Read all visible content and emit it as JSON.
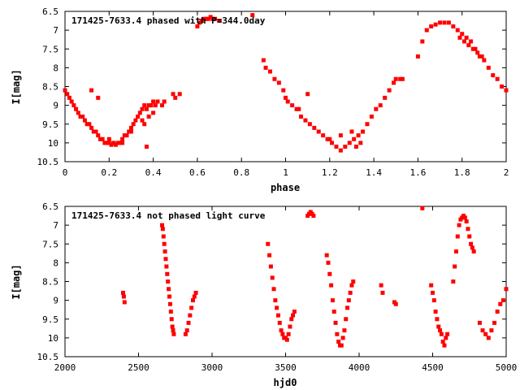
{
  "chart_data": [
    {
      "type": "scatter",
      "title": "171425-7633.4 phased with P=344.0day",
      "xlabel": "phase",
      "ylabel": "I[mag]",
      "xlim": [
        0,
        2
      ],
      "ylim": [
        10.5,
        6.5
      ],
      "y_inverted": true,
      "xticks": [
        0,
        0.2,
        0.4,
        0.6,
        0.8,
        1,
        1.2,
        1.4,
        1.6,
        1.8,
        2
      ],
      "yticks": [
        6.5,
        7,
        7.5,
        8,
        8.5,
        9,
        9.5,
        10,
        10.5
      ],
      "grid": false,
      "color": "#ff0000",
      "series": [
        {
          "x": [
            0.0,
            0.01,
            0.02,
            0.03,
            0.04,
            0.05,
            0.06,
            0.07,
            0.08,
            0.09,
            0.1,
            0.11,
            0.12,
            0.13,
            0.14,
            0.15,
            0.16,
            0.17,
            0.18,
            0.19,
            0.2,
            0.21,
            0.22,
            0.23,
            0.24,
            0.25,
            0.26,
            0.27,
            0.28,
            0.29,
            0.3,
            0.31,
            0.32,
            0.33,
            0.34,
            0.35,
            0.36,
            0.37,
            0.38,
            0.39,
            0.4,
            0.41,
            0.42,
            0.44,
            0.49,
            0.5,
            0.12,
            0.15,
            0.2,
            0.26,
            0.3,
            0.35,
            0.36,
            0.38,
            0.4,
            0.45,
            0.37,
            0.52,
            0.6,
            0.61,
            0.62,
            0.63,
            0.64,
            0.65,
            0.66,
            0.67,
            0.68,
            0.7,
            0.85,
            0.9,
            0.91,
            0.93,
            0.95,
            0.97,
            0.99,
            1.0,
            1.01,
            1.03,
            1.05,
            1.07,
            1.09,
            1.11,
            1.13,
            1.15,
            1.17,
            1.19,
            1.21,
            1.23,
            1.25,
            1.27,
            1.29,
            1.31,
            1.33,
            1.35,
            1.37,
            1.39,
            1.41,
            1.43,
            1.45,
            1.47,
            1.49,
            1.5,
            1.06,
            1.1,
            1.2,
            1.25,
            1.3,
            1.32,
            1.34,
            1.52,
            1.53,
            1.6,
            1.62,
            1.64,
            1.66,
            1.68,
            1.7,
            1.72,
            1.74,
            1.76,
            1.78,
            1.8,
            1.82,
            1.84,
            1.86,
            1.88,
            1.9,
            1.92,
            1.94,
            1.96,
            1.98,
            2.0,
            1.79,
            1.81,
            1.83,
            1.85,
            1.87,
            1.89
          ],
          "y": [
            8.6,
            8.7,
            8.8,
            8.9,
            9.0,
            9.1,
            9.2,
            9.3,
            9.3,
            9.4,
            9.5,
            9.5,
            9.6,
            9.7,
            9.7,
            9.8,
            9.9,
            9.9,
            10.0,
            10.0,
            10.0,
            10.05,
            10.0,
            10.05,
            10.0,
            10.0,
            9.9,
            9.8,
            9.8,
            9.7,
            9.6,
            9.5,
            9.4,
            9.3,
            9.2,
            9.1,
            9.0,
            9.1,
            9.0,
            9.0,
            8.9,
            9.0,
            8.9,
            9.0,
            8.7,
            8.8,
            8.6,
            8.8,
            9.9,
            10.0,
            9.7,
            9.4,
            9.5,
            9.3,
            9.2,
            8.9,
            10.1,
            8.7,
            6.9,
            6.8,
            6.75,
            6.7,
            6.7,
            6.7,
            6.65,
            6.7,
            6.7,
            6.75,
            6.6,
            7.8,
            8.0,
            8.1,
            8.3,
            8.4,
            8.6,
            8.8,
            8.9,
            9.0,
            9.1,
            9.3,
            9.4,
            9.5,
            9.6,
            9.7,
            9.8,
            9.9,
            10.0,
            10.1,
            10.2,
            10.1,
            10.0,
            9.9,
            9.8,
            9.7,
            9.5,
            9.3,
            9.1,
            9.0,
            8.8,
            8.6,
            8.4,
            8.3,
            9.1,
            8.7,
            9.9,
            9.8,
            9.7,
            10.1,
            10.0,
            8.3,
            8.3,
            7.7,
            7.3,
            7.0,
            6.9,
            6.85,
            6.8,
            6.8,
            6.8,
            6.9,
            7.0,
            7.1,
            7.2,
            7.3,
            7.5,
            7.7,
            7.8,
            8.0,
            8.2,
            8.3,
            8.5,
            8.6,
            7.2,
            7.3,
            7.4,
            7.5,
            7.6,
            7.7
          ]
        }
      ]
    },
    {
      "type": "scatter",
      "title": "171425-7633.4 not phased light curve",
      "xlabel": "hjd0",
      "ylabel": "I[mag]",
      "xlim": [
        2000,
        5000
      ],
      "ylim": [
        10.5,
        6.5
      ],
      "y_inverted": true,
      "xticks": [
        2000,
        2500,
        3000,
        3500,
        4000,
        4500,
        5000
      ],
      "yticks": [
        6.5,
        7,
        7.5,
        8,
        8.5,
        9,
        9.5,
        10,
        10.5
      ],
      "grid": false,
      "color": "#ff0000",
      "series": [
        {
          "x": [
            2395,
            2400,
            2405,
            2660,
            2665,
            2670,
            2675,
            2680,
            2685,
            2690,
            2695,
            2700,
            2705,
            2710,
            2715,
            2720,
            2725,
            2730,
            2735,
            2740,
            2820,
            2830,
            2840,
            2850,
            2860,
            2870,
            2880,
            2890,
            3380,
            3390,
            3400,
            3410,
            3420,
            3430,
            3440,
            3450,
            3460,
            3470,
            3480,
            3490,
            3500,
            3510,
            3520,
            3530,
            3540,
            3550,
            3560,
            3650,
            3660,
            3670,
            3680,
            3690,
            3780,
            3790,
            3800,
            3810,
            3820,
            3830,
            3840,
            3850,
            3860,
            3870,
            3880,
            3890,
            3900,
            3910,
            3920,
            3930,
            3940,
            3950,
            3960,
            4150,
            4160,
            4240,
            4250,
            4430,
            4490,
            4500,
            4510,
            4520,
            4530,
            4540,
            4550,
            4560,
            4570,
            4580,
            4590,
            4600,
            4640,
            4650,
            4660,
            4670,
            4680,
            4690,
            4700,
            4710,
            4720,
            4730,
            4740,
            4750,
            4760,
            4770,
            4780,
            4820,
            4840,
            4860,
            4880,
            4900,
            4920,
            4940,
            4960,
            4980,
            5000
          ],
          "y": [
            8.8,
            8.9,
            9.05,
            7.0,
            7.1,
            7.3,
            7.5,
            7.7,
            7.9,
            8.1,
            8.3,
            8.5,
            8.7,
            8.9,
            9.1,
            9.3,
            9.5,
            9.7,
            9.8,
            9.9,
            9.9,
            9.8,
            9.6,
            9.4,
            9.2,
            9.0,
            8.9,
            8.8,
            7.5,
            7.8,
            8.1,
            8.4,
            8.7,
            9.0,
            9.2,
            9.4,
            9.6,
            9.8,
            9.9,
            10.0,
            10.0,
            10.05,
            9.9,
            9.7,
            9.5,
            9.4,
            9.3,
            6.75,
            6.7,
            6.65,
            6.7,
            6.75,
            7.8,
            8.0,
            8.3,
            8.6,
            9.0,
            9.3,
            9.6,
            9.9,
            10.1,
            10.2,
            10.2,
            10.0,
            9.8,
            9.5,
            9.2,
            9.0,
            8.8,
            8.6,
            8.5,
            8.6,
            8.8,
            9.05,
            9.1,
            6.55,
            8.6,
            8.8,
            9.0,
            9.3,
            9.5,
            9.7,
            9.8,
            9.9,
            10.1,
            10.2,
            10.0,
            9.9,
            8.5,
            8.1,
            7.7,
            7.3,
            7.0,
            6.85,
            6.8,
            6.75,
            6.8,
            6.9,
            7.1,
            7.3,
            7.5,
            7.6,
            7.7,
            9.6,
            9.8,
            9.9,
            10.0,
            9.8,
            9.6,
            9.3,
            9.1,
            9.0,
            8.7
          ]
        }
      ]
    }
  ]
}
